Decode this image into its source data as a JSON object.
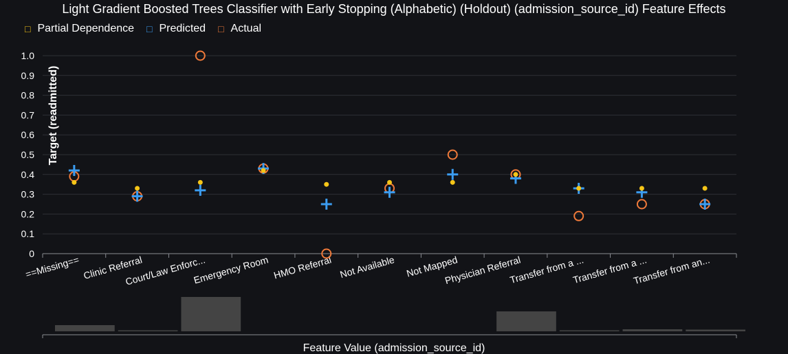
{
  "colors": {
    "partial_dependence": "#f5c518",
    "predicted": "#3b9cf0",
    "actual": "#f07a3a",
    "grid": "#2e3036",
    "axis": "#8a8c92",
    "histogram": "#444444"
  },
  "legend": {
    "partial_dependence": {
      "icon": "□",
      "label": "Partial Dependence"
    },
    "predicted": {
      "icon": "□",
      "label": "Predicted"
    },
    "actual": {
      "icon": "□",
      "label": "Actual"
    }
  },
  "chart_data": {
    "type": "scatter",
    "title": "Light Gradient Boosted Trees Classifier with Early Stopping (Alphabetic) (Holdout) (admission_source_id) Feature Effects",
    "xlabel": "Feature Value (admission_source_id)",
    "ylabel": "Target (readmitted)",
    "ylim": [
      0,
      1.0
    ],
    "yticks": [
      "0",
      "0.1",
      "0.2",
      "0.3",
      "0.4",
      "0.5",
      "0.6",
      "0.7",
      "0.8",
      "0.9",
      "1.0"
    ],
    "grid": true,
    "legend_position": "top-left",
    "categories": [
      "==Missing==",
      "Clinic Referral",
      "Court/Law Enforc...",
      "Emergency Room",
      "HMO Referral",
      "Not Available",
      "Not Mapped",
      "Physician Referral",
      "Transfer from a ...",
      "Transfer from a ...",
      "Transfer from an..."
    ],
    "series": [
      {
        "name": "Partial Dependence",
        "marker": "dot",
        "values": [
          0.36,
          0.33,
          0.36,
          0.42,
          0.35,
          0.36,
          0.36,
          0.4,
          0.33,
          0.33,
          0.33
        ]
      },
      {
        "name": "Predicted",
        "marker": "cross",
        "values": [
          0.42,
          0.29,
          0.32,
          0.43,
          0.25,
          0.31,
          0.4,
          0.38,
          0.33,
          0.31,
          0.25
        ]
      },
      {
        "name": "Actual",
        "marker": "circle",
        "values": [
          0.39,
          0.29,
          1.0,
          0.43,
          0.0,
          0.33,
          0.5,
          0.4,
          0.19,
          0.25,
          0.25
        ]
      }
    ],
    "histogram": [
      0.18,
      0.02,
      1.0,
      0.0,
      0.0,
      0.0,
      0.0,
      0.58,
      0.02,
      0.06,
      0.05
    ]
  }
}
